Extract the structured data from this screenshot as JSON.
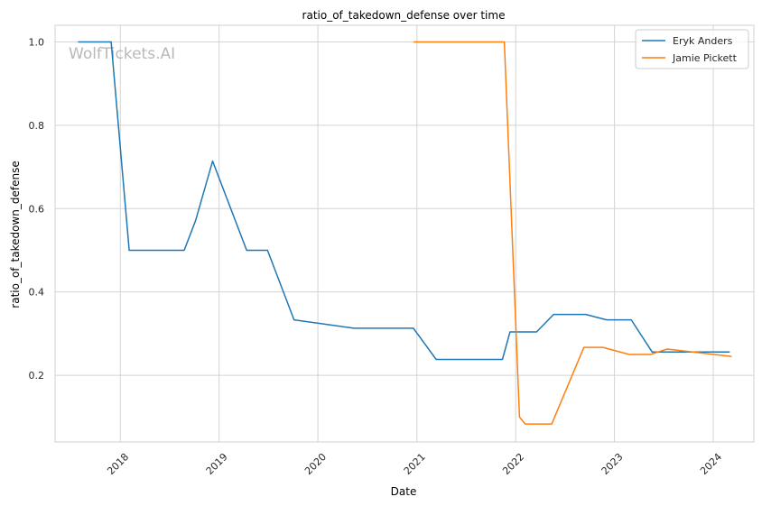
{
  "watermark": "WolfTickets.AI",
  "chart_data": {
    "type": "line",
    "title": "ratio_of_takedown_defense over time",
    "xlabel": "Date",
    "ylabel": "ratio_of_takedown_defense",
    "x_type": "date",
    "xlim": [
      "2017-05-05",
      "2024-05-30"
    ],
    "ylim": [
      0.04,
      1.04
    ],
    "x_ticks": [
      "2018",
      "2019",
      "2020",
      "2021",
      "2022",
      "2023",
      "2024"
    ],
    "y_ticks": [
      "0.2",
      "0.4",
      "0.6",
      "0.8",
      "1.0"
    ],
    "grid": true,
    "legend_position": "top-right",
    "series": [
      {
        "name": "Eryk Anders",
        "color": "#1f77b4",
        "x": [
          "2017-07-29",
          "2017-11-28",
          "2018-02-03",
          "2018-08-25",
          "2018-10-06",
          "2018-12-08",
          "2019-04-13",
          "2019-06-29",
          "2019-10-05",
          "2020-05-13",
          "2020-12-19",
          "2021-03-13",
          "2021-11-13",
          "2021-12-11",
          "2022-03-19",
          "2022-05-21",
          "2022-09-17",
          "2022-12-03",
          "2023-03-04",
          "2023-05-20",
          "2023-09-30",
          "2024-03-02"
        ],
        "y": [
          1.0,
          1.0,
          0.5,
          0.5,
          0.571,
          0.714,
          0.5,
          0.5,
          0.333,
          0.313,
          0.313,
          0.238,
          0.238,
          0.304,
          0.304,
          0.346,
          0.346,
          0.333,
          0.333,
          0.256,
          0.256,
          0.256
        ]
      },
      {
        "name": "Jamie Pickett",
        "color": "#ff7f0e",
        "x": [
          "2020-12-19",
          "2021-11-20",
          "2022-01-15",
          "2022-02-05",
          "2022-05-14",
          "2022-09-10",
          "2022-11-19",
          "2023-02-25",
          "2023-05-13",
          "2023-07-15",
          "2024-03-09"
        ],
        "y": [
          1.0,
          1.0,
          0.1,
          0.083,
          0.083,
          0.267,
          0.267,
          0.25,
          0.25,
          0.263,
          0.245
        ]
      }
    ]
  }
}
